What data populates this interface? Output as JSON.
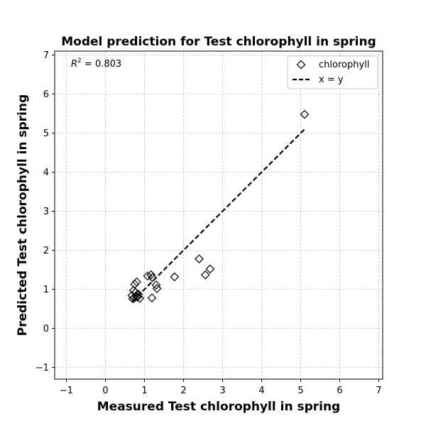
{
  "chart_data": {
    "type": "scatter",
    "title": "Model prediction for Test chlorophyll in spring",
    "xlabel": "Measured Test chlorophyll in spring",
    "ylabel": "Predicted Test chlorophyll in spring",
    "xlim": [
      -1.3,
      7.1
    ],
    "ylim": [
      -1.3,
      7.1
    ],
    "xticks": [
      -1,
      0,
      1,
      2,
      3,
      4,
      5,
      6,
      7
    ],
    "yticks": [
      -1,
      0,
      1,
      2,
      3,
      4,
      5,
      6,
      7
    ],
    "xtick_labels": [
      "−1",
      "0",
      "1",
      "2",
      "3",
      "4",
      "5",
      "6",
      "7"
    ],
    "ytick_labels": [
      "−1",
      "0",
      "1",
      "2",
      "3",
      "4",
      "5",
      "6",
      "7"
    ],
    "grid": true,
    "legend_position": "top-right",
    "annotation": {
      "prefix": "R",
      "superscript": "2",
      "suffix": " = 0.803"
    },
    "series": [
      {
        "name": "chlorophyll",
        "marker": "diamond",
        "color": "#000000",
        "x": [
          0.68,
          0.7,
          0.72,
          0.75,
          0.77,
          0.8,
          0.82,
          0.85,
          0.88,
          0.74,
          0.79,
          1.08,
          1.17,
          1.2,
          1.3,
          1.32,
          1.19,
          1.77,
          2.4,
          2.56,
          2.68,
          5.1
        ],
        "y": [
          0.84,
          0.76,
          0.97,
          1.13,
          0.92,
          1.19,
          0.8,
          0.87,
          0.77,
          0.78,
          0.82,
          1.34,
          1.37,
          1.3,
          1.11,
          1.02,
          0.78,
          1.32,
          1.78,
          1.37,
          1.52,
          5.48
        ]
      },
      {
        "name": "x = y",
        "type": "line",
        "style": "dashed",
        "color": "#000000",
        "x": [
          0.68,
          5.1
        ],
        "y": [
          0.68,
          5.1
        ]
      }
    ]
  }
}
